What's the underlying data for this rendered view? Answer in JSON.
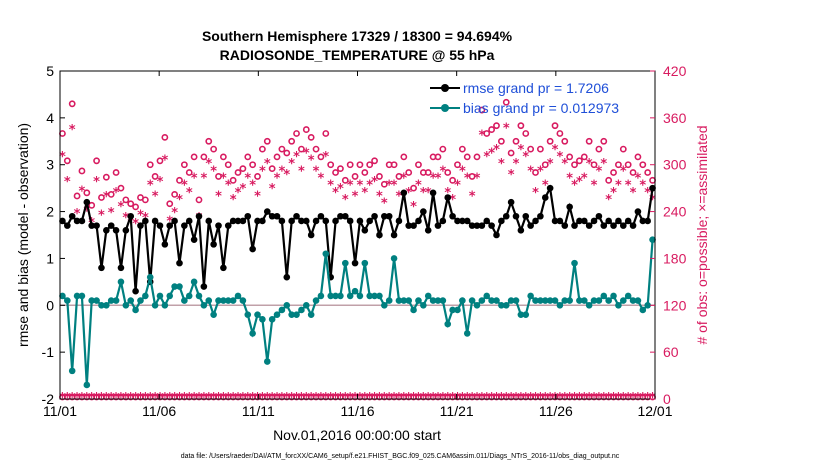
{
  "chart_data": {
    "type": "line",
    "title": "Southern Hemisphere 17329 / 18300 = 94.694%",
    "subtitle": "RADIOSONDE_TEMPERATURE @ 55 hPa",
    "xlabel": "Nov.01,2016 00:00:00 start",
    "ylabel": "rmse and bias (model - observation)",
    "y2label": "# of obs: o=possible; ×=assimilated",
    "footnote": "data file: /Users/raeder/DAI/ATM_forcXX/CAM6_setup/f.e21.FHIST_BGC.f09_025.CAM6assim.011/Diags_NTrS_2016-11/obs_diag_output.nc",
    "xlim": [
      0,
      30
    ],
    "ylim": [
      -2,
      5
    ],
    "y2lim": [
      0,
      420
    ],
    "xticks": [
      {
        "pos": 0,
        "label": "11/01"
      },
      {
        "pos": 5,
        "label": "11/06"
      },
      {
        "pos": 10,
        "label": "11/11"
      },
      {
        "pos": 15,
        "label": "11/16"
      },
      {
        "pos": 20,
        "label": "11/21"
      },
      {
        "pos": 25,
        "label": "11/26"
      },
      {
        "pos": 30,
        "label": "12/01"
      }
    ],
    "yticks": [
      "-2",
      "-1",
      "0",
      "1",
      "2",
      "3",
      "4",
      "5"
    ],
    "y2ticks": [
      "0",
      "60",
      "120",
      "180",
      "240",
      "300",
      "360",
      "420"
    ],
    "colors": {
      "rmse": "#000000",
      "bias": "#008080",
      "obs": "#d81b60",
      "zero": "#c0a0a8"
    },
    "series": [
      {
        "name": "rmse grand pr = 1.7206",
        "values": [
          1.8,
          1.7,
          1.9,
          1.8,
          1.8,
          2.2,
          1.7,
          1.7,
          0.8,
          1.6,
          1.7,
          1.6,
          0.8,
          1.6,
          1.9,
          0.3,
          1.7,
          1.8,
          0.5,
          1.8,
          1.7,
          1.3,
          1.7,
          1.8,
          0.9,
          1.7,
          1.8,
          1.4,
          1.9,
          0.4,
          1.8,
          1.3,
          1.7,
          0.8,
          1.7,
          1.8,
          1.8,
          1.8,
          1.9,
          1.2,
          1.8,
          1.8,
          2.0,
          1.9,
          1.9,
          1.8,
          0.6,
          1.8,
          1.9,
          1.8,
          1.8,
          1.5,
          1.8,
          1.9,
          1.8,
          0.6,
          1.8,
          1.9,
          1.9,
          1.8,
          0.9,
          1.8,
          1.6,
          1.8,
          1.9,
          1.5,
          1.9,
          1.9,
          1.5,
          1.8,
          2.4,
          1.7,
          1.7,
          1.8,
          2.0,
          1.6,
          2.4,
          1.7,
          1.8,
          2.3,
          1.9,
          1.8,
          1.8,
          1.8,
          1.7,
          1.7,
          1.7,
          1.8,
          1.7,
          1.5,
          1.8,
          1.9,
          2.2,
          1.9,
          1.6,
          1.9,
          1.7,
          1.8,
          1.9,
          2.3,
          2.5,
          1.8,
          1.8,
          1.7,
          2.1,
          1.7,
          1.8,
          1.8,
          1.7,
          1.8,
          1.9,
          1.7,
          1.8,
          1.7,
          1.8,
          1.7,
          1.8,
          1.7,
          2.0,
          1.8,
          1.8,
          2.5
        ]
      },
      {
        "name": "bias grand pr = 0.012973",
        "values": [
          0.2,
          0.1,
          -1.4,
          0.2,
          0.2,
          -1.7,
          0.1,
          0.1,
          0.0,
          0.0,
          0.1,
          0.1,
          0.5,
          0.0,
          0.1,
          -0.1,
          0.1,
          0.2,
          0.6,
          0.0,
          0.2,
          0.0,
          0.2,
          0.4,
          0.4,
          0.1,
          0.2,
          0.5,
          0.2,
          0.0,
          0.1,
          -0.2,
          0.1,
          0.1,
          0.1,
          0.1,
          0.2,
          0.1,
          -0.2,
          -0.6,
          -0.2,
          -0.3,
          -1.2,
          -0.3,
          -0.2,
          -0.1,
          0.0,
          -0.2,
          -0.2,
          -0.1,
          0.0,
          -0.2,
          0.1,
          0.2,
          1.1,
          0.2,
          0.2,
          0.2,
          0.9,
          0.2,
          0.3,
          0.2,
          0.9,
          0.2,
          0.2,
          0.2,
          0.0,
          0.1,
          1.0,
          0.1,
          0.1,
          0.1,
          -0.1,
          0.1,
          0.0,
          0.2,
          0.1,
          0.1,
          0.1,
          -0.4,
          -0.1,
          -0.1,
          0.1,
          -0.6,
          0.1,
          0.0,
          0.1,
          0.2,
          0.1,
          0.1,
          0.0,
          0.0,
          0.1,
          0.1,
          -0.2,
          -0.2,
          0.2,
          0.1,
          0.1,
          0.1,
          0.1,
          0.1,
          0.0,
          0.1,
          0.1,
          0.9,
          0.1,
          0.1,
          0.0,
          0.1,
          0.1,
          0.2,
          0.1,
          0.2,
          0.0,
          0.1,
          0.2,
          0.1,
          0.1,
          -0.1,
          0.0,
          1.4
        ]
      }
    ],
    "obs_possible": [
      340,
      305,
      378,
      260,
      292,
      264,
      248,
      305,
      258,
      284,
      262,
      290,
      270,
      255,
      250,
      246,
      258,
      255,
      300,
      285,
      305,
      335,
      250,
      262,
      280,
      300,
      290,
      310,
      255,
      310,
      330,
      320,
      285,
      310,
      300,
      280,
      290,
      295,
      310,
      300,
      285,
      320,
      330,
      295,
      310,
      320,
      315,
      330,
      340,
      320,
      345,
      335,
      320,
      310,
      340,
      300,
      290,
      295,
      280,
      300,
      285,
      300,
      290,
      300,
      305,
      285,
      275,
      300,
      300,
      285,
      310,
      290,
      270,
      300,
      290,
      290,
      310,
      310,
      320,
      290,
      280,
      300,
      320,
      310,
      285,
      310,
      370,
      340,
      345,
      350,
      330,
      380,
      315,
      330,
      350,
      340,
      320,
      290,
      320,
      300,
      330,
      350,
      340,
      330,
      310,
      300,
      305,
      310,
      330,
      300,
      320,
      330,
      280,
      290,
      300,
      320,
      300,
      290,
      310,
      300,
      290,
      280
    ]
  }
}
